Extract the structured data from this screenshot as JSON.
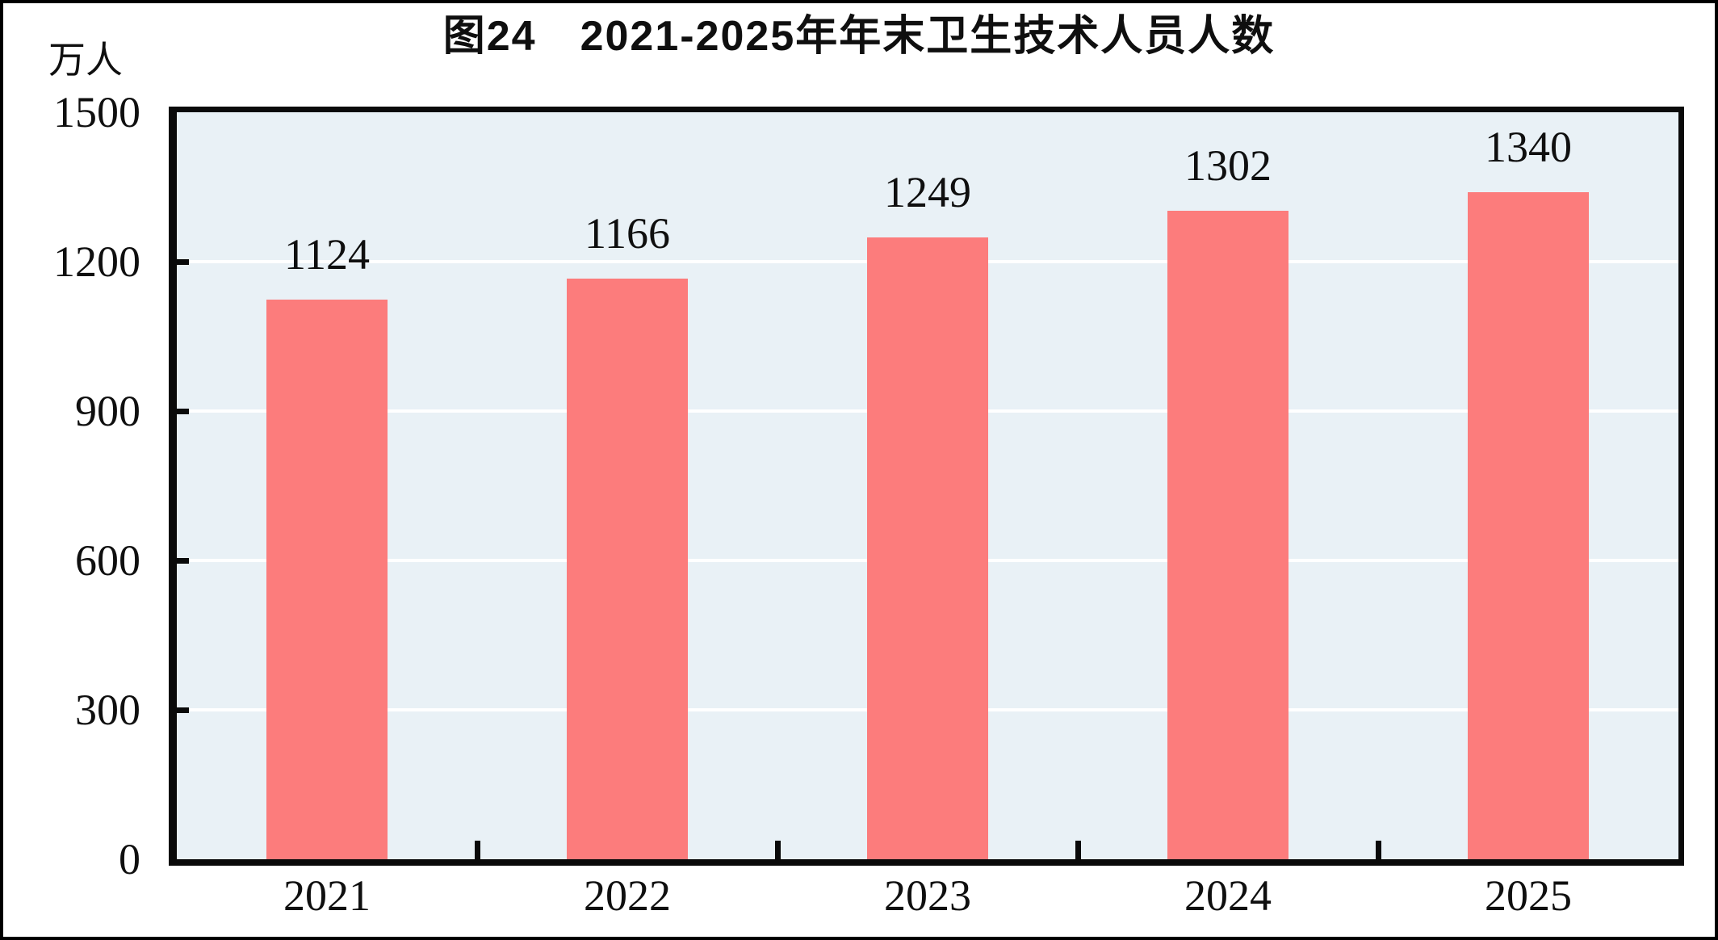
{
  "figure": {
    "border_color": "#000000",
    "background": "#ffffff"
  },
  "chart_data": {
    "type": "bar",
    "title": "图24　2021-2025年年末卫生技术人员人数",
    "unit_label": "万人",
    "xlabel": "",
    "ylabel": "万人",
    "categories": [
      "2021",
      "2022",
      "2023",
      "2024",
      "2025"
    ],
    "values": [
      1124,
      1166,
      1249,
      1302,
      1340
    ],
    "ylim": [
      0,
      1500
    ],
    "yticks": [
      0,
      300,
      600,
      900,
      1200,
      1500
    ],
    "grid": "horizontal-white-lines",
    "legend_position": "none",
    "bar_color": "#FC7C7C",
    "plot_background": "#E9F1F6",
    "gridline_color": "#FFFFFF",
    "axis_color": "#0A0A0A",
    "text_color": "#0F0F0F"
  }
}
